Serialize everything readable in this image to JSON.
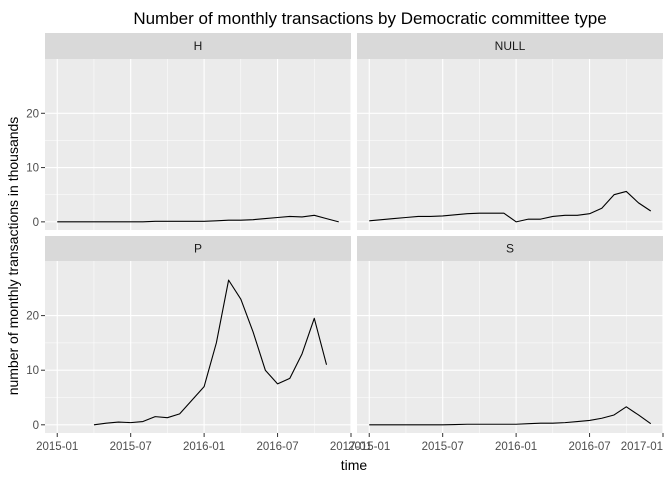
{
  "chart_data": {
    "type": "line",
    "title": "Number of monthly transactions by Democratic committee type",
    "xlabel": "time",
    "ylabel": "number of monthly transactions in thousands",
    "x_ticks": [
      "2015-01",
      "2015-07",
      "2016-01",
      "2016-07",
      "2017-01"
    ],
    "y_ticks": [
      "0",
      "10",
      "20"
    ],
    "ylim": [
      -1.5,
      30
    ],
    "xlim_months": [
      "2014-12",
      "2017-01"
    ],
    "grid": true,
    "panels": [
      {
        "label": "H",
        "series": [
          {
            "x": [
              "2015-01",
              "2015-02",
              "2015-03",
              "2015-04",
              "2015-05",
              "2015-06",
              "2015-07",
              "2015-08",
              "2015-09",
              "2015-10",
              "2015-11",
              "2015-12",
              "2016-01",
              "2016-02",
              "2016-03",
              "2016-04",
              "2016-05",
              "2016-06",
              "2016-07",
              "2016-08",
              "2016-09",
              "2016-10",
              "2016-11",
              "2016-12"
            ],
            "y": [
              0,
              0,
              0,
              0,
              0,
              0,
              0,
              0,
              0.1,
              0.1,
              0.1,
              0.1,
              0.1,
              0.2,
              0.3,
              0.3,
              0.4,
              0.6,
              0.8,
              1.0,
              0.9,
              1.2,
              0.6,
              0
            ]
          }
        ]
      },
      {
        "label": "NULL",
        "series": [
          {
            "x": [
              "2015-01",
              "2015-02",
              "2015-03",
              "2015-04",
              "2015-05",
              "2015-06",
              "2015-07",
              "2015-08",
              "2015-09",
              "2015-10",
              "2015-11",
              "2015-12",
              "2016-01",
              "2016-02",
              "2016-03",
              "2016-04",
              "2016-05",
              "2016-06",
              "2016-07",
              "2016-08",
              "2016-09",
              "2016-10",
              "2016-11",
              "2016-12"
            ],
            "y": [
              0.2,
              0.4,
              0.6,
              0.8,
              1.0,
              1.0,
              1.1,
              1.3,
              1.5,
              1.6,
              1.6,
              1.6,
              0,
              0.5,
              0.5,
              1.0,
              1.2,
              1.2,
              1.5,
              2.5,
              5.0,
              5.6,
              3.5,
              2.0
            ]
          }
        ]
      },
      {
        "label": "P",
        "series": [
          {
            "x": [
              "2015-04",
              "2015-05",
              "2015-06",
              "2015-07",
              "2015-08",
              "2015-09",
              "2015-10",
              "2015-11",
              "2015-12",
              "2016-01",
              "2016-02",
              "2016-03",
              "2016-04",
              "2016-05",
              "2016-06",
              "2016-07",
              "2016-08",
              "2016-09",
              "2016-10",
              "2016-11"
            ],
            "y": [
              0,
              0.3,
              0.5,
              0.4,
              0.6,
              1.5,
              1.3,
              2.0,
              4.5,
              7.0,
              15.0,
              26.5,
              23.0,
              17.0,
              10.0,
              7.5,
              8.5,
              13.0,
              19.5,
              11.0
            ]
          }
        ]
      },
      {
        "label": "S",
        "series": [
          {
            "x": [
              "2015-01",
              "2015-02",
              "2015-03",
              "2015-04",
              "2015-05",
              "2015-06",
              "2015-07",
              "2015-08",
              "2015-09",
              "2015-10",
              "2015-11",
              "2015-12",
              "2016-01",
              "2016-02",
              "2016-03",
              "2016-04",
              "2016-05",
              "2016-06",
              "2016-07",
              "2016-08",
              "2016-09",
              "2016-10",
              "2016-11",
              "2016-12"
            ],
            "y": [
              0,
              0,
              0,
              0,
              0,
              0,
              0,
              0.05,
              0.1,
              0.1,
              0.1,
              0.1,
              0.1,
              0.2,
              0.3,
              0.3,
              0.4,
              0.6,
              0.8,
              1.2,
              1.8,
              3.3,
              1.8,
              0.2
            ]
          }
        ]
      }
    ]
  }
}
